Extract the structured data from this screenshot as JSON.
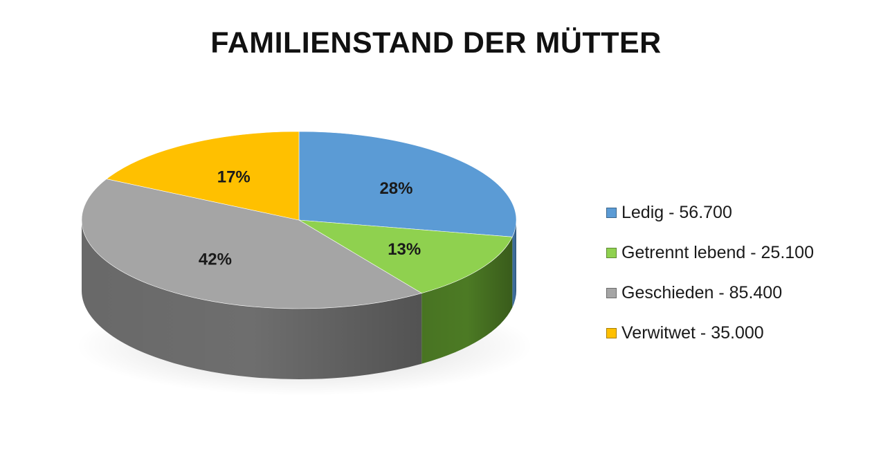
{
  "chart_data": {
    "type": "pie",
    "title": "FAMILIENSTAND DER MÜTTER",
    "categories": [
      "Ledig",
      "Getrennt lebend",
      "Geschieden",
      "Verwitwet"
    ],
    "values": [
      56700,
      25100,
      85400,
      35000
    ],
    "percent_labels": [
      "28%",
      "13%",
      "42%",
      "17%"
    ],
    "legend_entries": [
      "Ledig - 56.700",
      "Getrennt lebend - 25.100",
      "Geschieden - 85.400",
      "Verwitwet - 35.000"
    ],
    "colors": [
      "#5b9bd5",
      "#8fd14f",
      "#a5a5a5",
      "#ffc000"
    ],
    "side_colors": [
      "#3f6f9e",
      "#4c7a24",
      "#6e6e6e",
      "#b38600"
    ],
    "legend_position": "right",
    "style": "3d"
  }
}
